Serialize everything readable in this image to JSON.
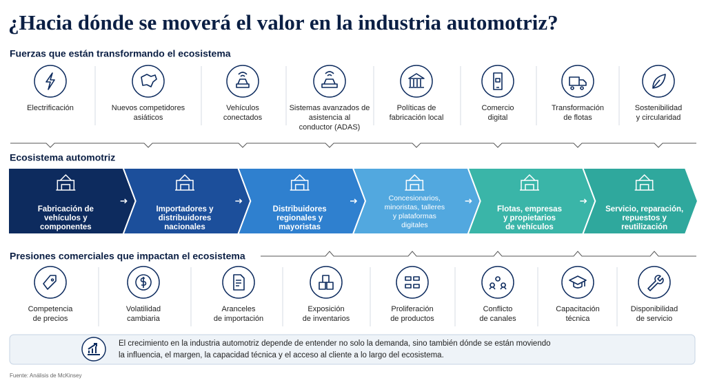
{
  "title": "¿Hacia dónde se moverá el valor en la industria automotriz?",
  "forces": {
    "heading": "Fuerzas que están transformando el ecosistema",
    "items": [
      [
        "Electrificación"
      ],
      [
        "Nuevos competidores",
        "asiáticos"
      ],
      [
        "Vehículos",
        "conectados"
      ],
      [
        "Sistemas avanzados de",
        "asistencia al",
        "conductor (ADAS)"
      ],
      [
        "Políticas de",
        "fabricación local"
      ],
      [
        "Comercio",
        "digital"
      ],
      [
        "Transformación",
        "de flotas"
      ],
      [
        "Sostenibilidad",
        "y circularidad"
      ]
    ]
  },
  "ecosystem": {
    "heading": "Ecosistema automotriz",
    "stages": [
      [
        "Fabricación de",
        "vehículos y",
        "componentes"
      ],
      [
        "Importadores y",
        "distribuidores",
        "nacionales"
      ],
      [
        "Distribuidores",
        "regionales y",
        "mayoristas"
      ],
      [
        "Concesionarios,",
        "minoristas, talleres",
        "y plataformas",
        "digitales"
      ],
      [
        "Flotas, empresas",
        "y propietarios",
        "de vehículos"
      ],
      [
        "Servicio, reparación,",
        "repuestos y",
        "reutilización"
      ]
    ]
  },
  "pressures": {
    "heading": "Presiones comerciales que impactan el ecosistema",
    "items": [
      [
        "Competencia",
        "de precios"
      ],
      [
        "Volatilidad",
        "cambiaria"
      ],
      [
        "Aranceles",
        "de importación"
      ],
      [
        "Exposición",
        "de inventarios"
      ],
      [
        "Proliferación",
        "de productos"
      ],
      [
        "Conflicto",
        "de canales"
      ],
      [
        "Capacitación",
        "técnica"
      ],
      [
        "Disponibilidad",
        "de servicio"
      ]
    ]
  },
  "callout": [
    "El crecimiento en la industria automotriz depende de entender no solo la demanda, sino también dónde se están moviendo",
    "la influencia, el margen, la capacidad técnica y el acceso al cliente a lo largo del ecosistema."
  ],
  "source": "Fuente: Análisis de McKinsey"
}
